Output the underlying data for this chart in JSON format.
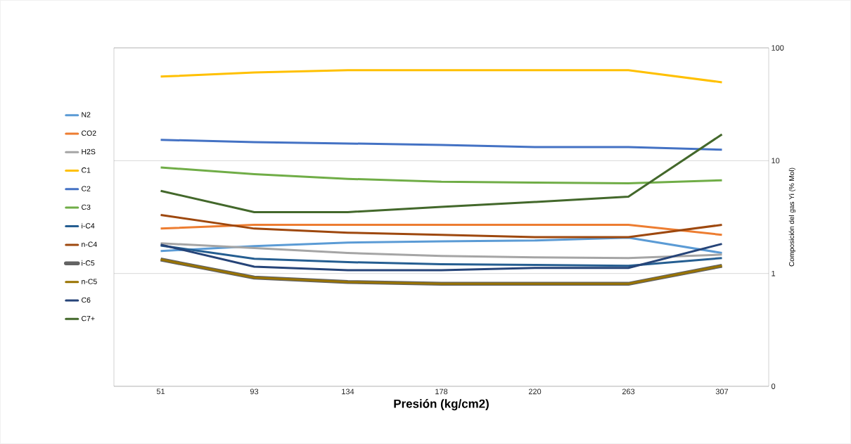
{
  "chart_data": {
    "type": "line",
    "xlabel": "Presión (kg/cm2)",
    "ylabel": "Composición del gas Yi (% Mol)",
    "categories": [
      "51",
      "93",
      "134",
      "178",
      "220",
      "263",
      "307"
    ],
    "log": true,
    "ylim": [
      0.1,
      100
    ],
    "yticks": [
      {
        "value": 0.1,
        "label": "0"
      },
      1,
      10,
      100
    ],
    "grid": "y",
    "legend": "left",
    "marker": "none",
    "line_style": "solid",
    "series": [
      {
        "name": "N2",
        "color": "#5b9bd5",
        "values": [
          1.58,
          1.75,
          1.88,
          1.93,
          1.96,
          2.08,
          1.52
        ]
      },
      {
        "name": "CO2",
        "color": "#ed7d31",
        "values": [
          2.5,
          2.7,
          2.7,
          2.7,
          2.7,
          2.7,
          2.2
        ]
      },
      {
        "name": "H2S",
        "color": "#a5a5a5",
        "values": [
          1.85,
          1.68,
          1.52,
          1.43,
          1.39,
          1.37,
          1.47
        ]
      },
      {
        "name": "C1",
        "color": "#ffc000",
        "values": [
          55.6,
          60.5,
          63.3,
          63.3,
          63.3,
          63.3,
          49.5
        ]
      },
      {
        "name": "C2",
        "color": "#4472c4",
        "values": [
          15.3,
          14.6,
          14.2,
          13.8,
          13.2,
          13.2,
          12.5
        ]
      },
      {
        "name": "C3",
        "color": "#70ad47",
        "values": [
          8.7,
          7.6,
          6.9,
          6.5,
          6.4,
          6.3,
          6.7
        ]
      },
      {
        "name": "i-C4",
        "color": "#255e91",
        "values": [
          1.77,
          1.35,
          1.26,
          1.21,
          1.19,
          1.17,
          1.37
        ]
      },
      {
        "name": "n-C4",
        "color": "#9e480e",
        "values": [
          3.3,
          2.5,
          2.3,
          2.2,
          2.1,
          2.1,
          2.7
        ]
      },
      {
        "name": "i-C5",
        "color": "#636363",
        "values": [
          1.33,
          0.92,
          0.84,
          0.81,
          0.81,
          0.81,
          1.17
        ]
      },
      {
        "name": "n-C5",
        "color": "#997300",
        "values": [
          1.33,
          0.92,
          0.84,
          0.81,
          0.81,
          0.81,
          1.17
        ]
      },
      {
        "name": "C6",
        "color": "#264478",
        "values": [
          1.8,
          1.15,
          1.07,
          1.07,
          1.12,
          1.12,
          1.83
        ]
      },
      {
        "name": "C7+",
        "color": "#43682b",
        "values": [
          5.4,
          3.5,
          3.5,
          3.9,
          4.3,
          4.8,
          17.1
        ]
      }
    ]
  }
}
